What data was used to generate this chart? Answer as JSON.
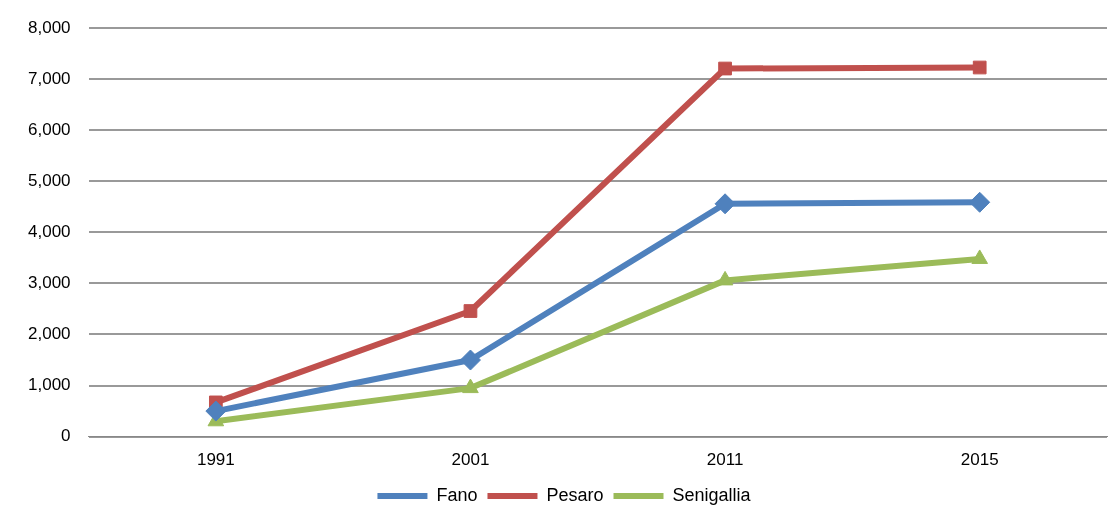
{
  "chart_data": {
    "type": "line",
    "categories": [
      "1991",
      "2001",
      "2011",
      "2015"
    ],
    "series": [
      {
        "name": "Fano",
        "color": "#4f81bd",
        "marker": "diamond",
        "values": [
          500,
          1500,
          4560,
          4590
        ]
      },
      {
        "name": "Pesaro",
        "color": "#c0504d",
        "marker": "square",
        "values": [
          670,
          2460,
          7210,
          7230
        ]
      },
      {
        "name": "Senigallia",
        "color": "#9bbb59",
        "marker": "triangle",
        "values": [
          300,
          950,
          3060,
          3480
        ]
      }
    ],
    "ylim": [
      0,
      8000
    ],
    "yticks": [
      {
        "value": 0,
        "label": "0"
      },
      {
        "value": 1000,
        "label": "1,000"
      },
      {
        "value": 2000,
        "label": "2,000"
      },
      {
        "value": 3000,
        "label": "3,000"
      },
      {
        "value": 4000,
        "label": "4,000"
      },
      {
        "value": 5000,
        "label": "5,000"
      },
      {
        "value": 6000,
        "label": "6,000"
      },
      {
        "value": 7000,
        "label": "7,000"
      },
      {
        "value": 8000,
        "label": "8,000"
      }
    ],
    "grid": "y",
    "legend": "bottom"
  }
}
